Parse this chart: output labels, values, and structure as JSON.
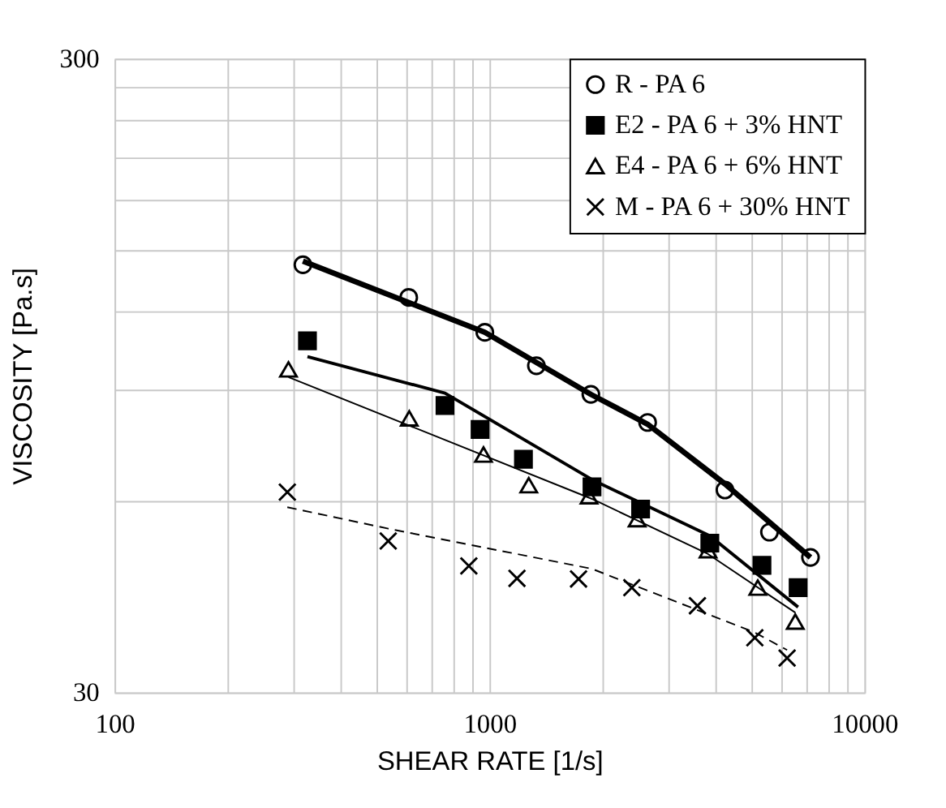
{
  "chart_data": {
    "type": "scatter",
    "xlabel": "SHEAR RATE [1/s]",
    "ylabel": "VISCOSITY  [Pa.s]",
    "log": "xy",
    "grid": true,
    "legend": "top right",
    "xlim": [
      100,
      10000
    ],
    "ylim": [
      30,
      300
    ],
    "xticks": [
      100,
      {
        "value": 200,
        "label": null
      },
      {
        "value": 300,
        "label": null
      },
      {
        "value": 400,
        "label": null
      },
      {
        "value": 500,
        "label": null
      },
      {
        "value": 600,
        "label": null
      },
      {
        "value": 700,
        "label": null
      },
      {
        "value": 800,
        "label": null
      },
      {
        "value": 900,
        "label": null
      },
      1000,
      {
        "value": 2000,
        "label": null
      },
      {
        "value": 3000,
        "label": null
      },
      {
        "value": 4000,
        "label": null
      },
      {
        "value": 5000,
        "label": null
      },
      {
        "value": 6000,
        "label": null
      },
      {
        "value": 7000,
        "label": null
      },
      {
        "value": 8000,
        "label": null
      },
      {
        "value": 9000,
        "label": null
      },
      10000
    ],
    "yticks": [
      30,
      {
        "value": 60,
        "label": null
      },
      {
        "value": 90,
        "label": null
      },
      {
        "value": 120,
        "label": null
      },
      {
        "value": 150,
        "label": null
      },
      {
        "value": 180,
        "label": null
      },
      {
        "value": 210,
        "label": null
      },
      {
        "value": 240,
        "label": null
      },
      {
        "value": 270,
        "label": null
      },
      300
    ],
    "series": [
      {
        "name": "R - PA 6",
        "marker": "circle",
        "color": "#000000",
        "x": [
          318,
          609,
          972,
          1334,
          1864,
          2641,
          4246,
          5582,
          7180
        ],
        "values": [
          141.9,
          126,
          111,
          98.3,
          88.6,
          80.0,
          62.6,
          53.7,
          49.0
        ]
      },
      {
        "name": "E2 - PA 6 + 3% HNT",
        "marker": "square",
        "color": "#000000",
        "x": [
          327,
          761,
          944,
          1232,
          1877,
          2530,
          3870,
          5330,
          6655
        ],
        "values": [
          107.6,
          85.1,
          78.0,
          70.0,
          63.3,
          58.4,
          51.6,
          47.6,
          43.9
        ]
      },
      {
        "name": "E4 - PA 6 + 6% HNT",
        "marker": "triangle",
        "color": "#000000",
        "x": [
          291,
          611,
          964,
          1273,
          1843,
          2476,
          3828,
          5196,
          6540
        ],
        "values": [
          97,
          81.2,
          71.2,
          63.7,
          61.2,
          56.3,
          50.3,
          43.9,
          38.8
        ]
      },
      {
        "name": "M - PA 6 + 30% HNT",
        "marker": "cross",
        "color": "#000000",
        "x": [
          289,
          537,
          881,
          1184,
          1728,
          2397,
          3586,
          5102,
          6220
        ],
        "values": [
          62.1,
          52.0,
          47.5,
          45.4,
          45.3,
          43.9,
          41.1,
          36.6,
          34.0
        ]
      },
      {
        "type": "line",
        "color": "#000000",
        "line_style": "solid",
        "x": [
          318,
          972,
          1864,
          2641,
          4246,
          7180
        ],
        "values": [
          143.8,
          111,
          88.6,
          79.5,
          64,
          49
        ]
      },
      {
        "type": "line",
        "color": "#000000",
        "line_style": "solid",
        "x": [
          327,
          761,
          1877,
          3870,
          6655
        ],
        "values": [
          101.6,
          89.0,
          65.0,
          53.0,
          40.9
        ]
      },
      {
        "type": "line",
        "color": "#000000",
        "line_style": "solid",
        "x": [
          291,
          611,
          1877,
          3828,
          6540
        ],
        "values": [
          94.3,
          79.1,
          60.6,
          49.6,
          40.1
        ]
      },
      {
        "type": "line",
        "color": "#000000",
        "line_style": "dashed",
        "x": [
          289,
          537,
          1877,
          5102,
          6220
        ],
        "values": [
          58.8,
          54.4,
          47.0,
          37.3,
          35.0
        ]
      }
    ]
  }
}
